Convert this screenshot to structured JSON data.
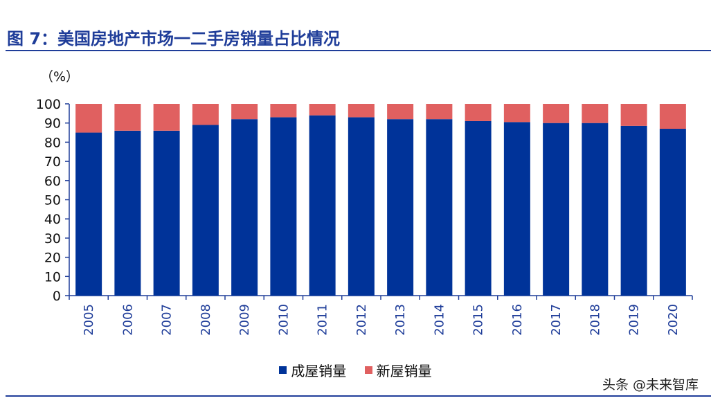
{
  "title": "图 7：美国房地产市场一二手房销量占比情况",
  "unit_label": "（%）",
  "watermark": "头条 @未来智库",
  "chart_data": {
    "type": "bar",
    "stacked": true,
    "categories": [
      "2005",
      "2006",
      "2007",
      "2008",
      "2009",
      "2010",
      "2011",
      "2012",
      "2013",
      "2014",
      "2015",
      "2016",
      "2017",
      "2018",
      "2019",
      "2020"
    ],
    "series": [
      {
        "name": "成屋销量",
        "color": "#003399",
        "values": [
          85,
          86,
          86,
          89,
          92,
          93,
          94,
          93,
          92,
          92,
          91,
          90.5,
          90,
          90,
          88.5,
          87
        ]
      },
      {
        "name": "新屋销量",
        "color": "#e06060",
        "values": [
          15,
          14,
          14,
          11,
          8,
          7,
          6,
          7,
          8,
          8,
          9,
          9.5,
          10,
          10,
          11.5,
          13
        ]
      }
    ],
    "ylim": [
      0,
      100
    ],
    "yticks": [
      0,
      10,
      20,
      30,
      40,
      50,
      60,
      70,
      80,
      90,
      100
    ],
    "legend_position": "bottom",
    "grid": false
  }
}
